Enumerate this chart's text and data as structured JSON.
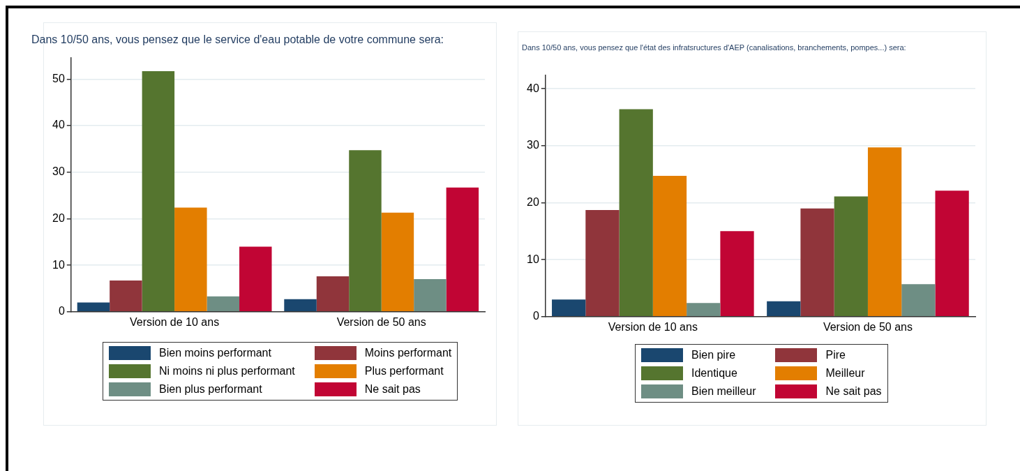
{
  "chart_data": [
    {
      "type": "bar",
      "title": "Dans 10/50 ans, vous pensez que le service d'eau potable de votre commune sera:",
      "categories": [
        "Version de 10 ans",
        "Version de 50 ans"
      ],
      "series": [
        {
          "name": "Bien moins performant",
          "color": "#1a476f",
          "values": [
            2.0,
            2.7
          ]
        },
        {
          "name": "Moins performant",
          "color": "#90353b",
          "values": [
            6.7,
            7.6
          ]
        },
        {
          "name": "Ni moins ni plus performant",
          "color": "#55752f",
          "values": [
            51.7,
            34.7
          ]
        },
        {
          "name": "Plus performant",
          "color": "#e37e00",
          "values": [
            22.4,
            21.3
          ]
        },
        {
          "name": "Bien plus performant",
          "color": "#6e8e84",
          "values": [
            3.3,
            7.0
          ]
        },
        {
          "name": "Ne sait pas",
          "color": "#c10534",
          "values": [
            14.0,
            26.7
          ]
        }
      ],
      "ylim": [
        0,
        54.6
      ],
      "yticks": [
        0,
        10,
        20,
        30,
        40,
        50
      ],
      "grid": "y",
      "legend": "bottom"
    },
    {
      "type": "bar",
      "title": "Dans 10/50 ans, vous pensez que l'état des infratsructures d'AEP (canalisations, branchements, pompes...) sera:",
      "categories": [
        "Version de 10 ans",
        "Version de 50 ans"
      ],
      "series": [
        {
          "name": "Bien pire",
          "color": "#1a476f",
          "values": [
            3.0,
            2.7
          ]
        },
        {
          "name": "Pire",
          "color": "#90353b",
          "values": [
            18.7,
            19.0
          ]
        },
        {
          "name": "Identique",
          "color": "#55752f",
          "values": [
            36.4,
            21.1
          ]
        },
        {
          "name": "Meilleur",
          "color": "#e37e00",
          "values": [
            24.7,
            29.7
          ]
        },
        {
          "name": "Bien meilleur",
          "color": "#6e8e84",
          "values": [
            2.4,
            5.7
          ]
        },
        {
          "name": "Ne sait pas",
          "color": "#c10534",
          "values": [
            15.0,
            22.1
          ]
        }
      ],
      "ylim": [
        0,
        42.4
      ],
      "yticks": [
        0,
        10,
        20,
        30,
        40
      ],
      "grid": "y",
      "legend": "bottom"
    }
  ]
}
